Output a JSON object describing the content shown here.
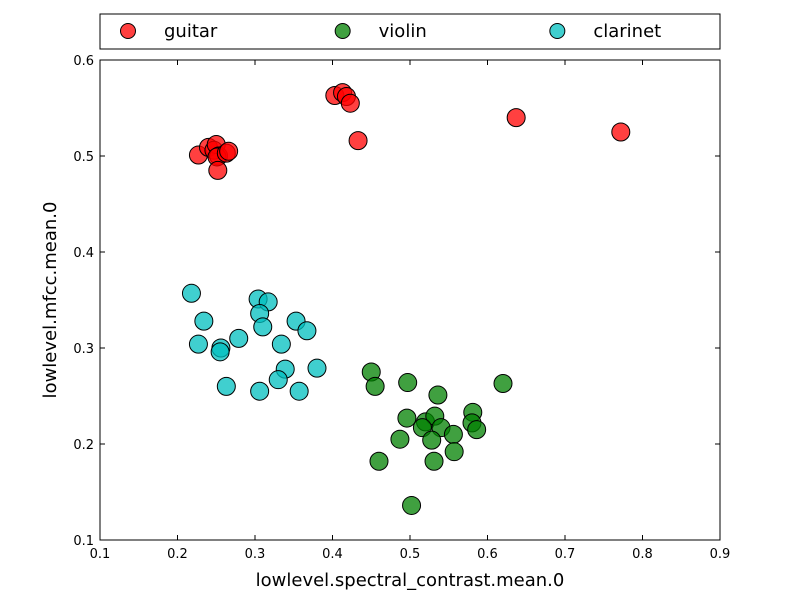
{
  "chart_data": {
    "type": "scatter",
    "title": "",
    "xlabel": "lowlevel.spectral_contrast.mean.0",
    "ylabel": "lowlevel.mfcc.mean.0",
    "xlim": [
      0.1,
      0.9
    ],
    "ylim": [
      0.1,
      0.6
    ],
    "xticks": [
      "0.1",
      "0.2",
      "0.3",
      "0.4",
      "0.5",
      "0.6",
      "0.7",
      "0.8",
      "0.9"
    ],
    "yticks": [
      "0.1",
      "0.2",
      "0.3",
      "0.4",
      "0.5",
      "0.6"
    ],
    "grid": false,
    "legend": "top-outside",
    "series": [
      {
        "name": "guitar",
        "color": "#ff0000",
        "points": [
          [
            0.227,
            0.501
          ],
          [
            0.24,
            0.509
          ],
          [
            0.247,
            0.506
          ],
          [
            0.25,
            0.512
          ],
          [
            0.253,
            0.5
          ],
          [
            0.251,
            0.499
          ],
          [
            0.263,
            0.503
          ],
          [
            0.266,
            0.505
          ],
          [
            0.252,
            0.485
          ],
          [
            0.403,
            0.563
          ],
          [
            0.413,
            0.566
          ],
          [
            0.418,
            0.562
          ],
          [
            0.423,
            0.555
          ],
          [
            0.433,
            0.516
          ],
          [
            0.637,
            0.54
          ],
          [
            0.772,
            0.525
          ]
        ]
      },
      {
        "name": "violin",
        "color": "#008000",
        "points": [
          [
            0.45,
            0.275
          ],
          [
            0.455,
            0.26
          ],
          [
            0.497,
            0.264
          ],
          [
            0.536,
            0.251
          ],
          [
            0.62,
            0.263
          ],
          [
            0.496,
            0.227
          ],
          [
            0.52,
            0.223
          ],
          [
            0.532,
            0.229
          ],
          [
            0.54,
            0.217
          ],
          [
            0.581,
            0.233
          ],
          [
            0.58,
            0.222
          ],
          [
            0.586,
            0.215
          ],
          [
            0.516,
            0.217
          ],
          [
            0.556,
            0.21
          ],
          [
            0.487,
            0.205
          ],
          [
            0.528,
            0.204
          ],
          [
            0.46,
            0.182
          ],
          [
            0.531,
            0.182
          ],
          [
            0.557,
            0.192
          ],
          [
            0.502,
            0.136
          ]
        ]
      },
      {
        "name": "clarinet",
        "color": "#00bfbf",
        "points": [
          [
            0.218,
            0.357
          ],
          [
            0.234,
            0.328
          ],
          [
            0.227,
            0.304
          ],
          [
            0.256,
            0.3
          ],
          [
            0.255,
            0.296
          ],
          [
            0.279,
            0.31
          ],
          [
            0.263,
            0.26
          ],
          [
            0.304,
            0.351
          ],
          [
            0.317,
            0.348
          ],
          [
            0.306,
            0.336
          ],
          [
            0.31,
            0.322
          ],
          [
            0.353,
            0.328
          ],
          [
            0.367,
            0.318
          ],
          [
            0.334,
            0.304
          ],
          [
            0.339,
            0.278
          ],
          [
            0.38,
            0.279
          ],
          [
            0.33,
            0.267
          ],
          [
            0.306,
            0.255
          ],
          [
            0.357,
            0.255
          ]
        ]
      }
    ]
  }
}
